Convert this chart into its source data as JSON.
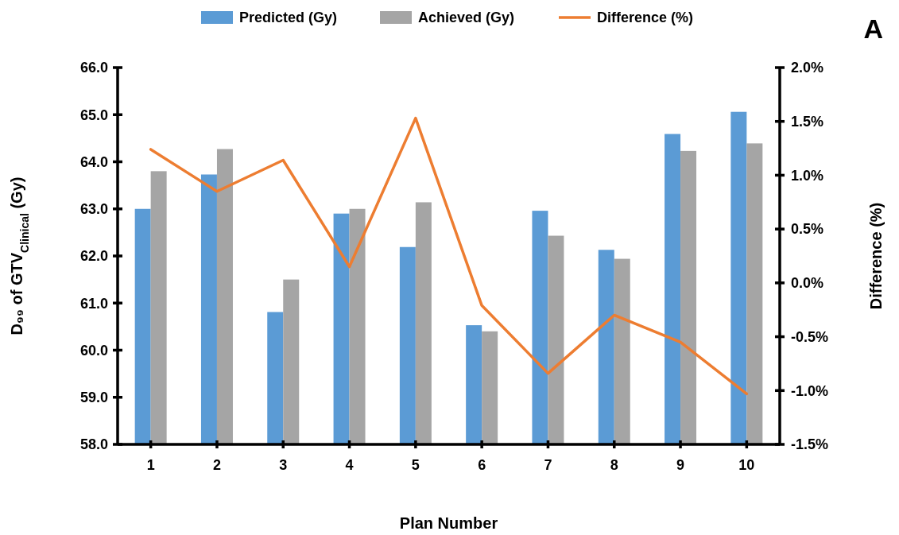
{
  "chart_data": {
    "type": "bar",
    "xlabel": "Plan Number",
    "ylabel": "D₉₉ of GTV$_{Clinical}$ (Gy)",
    "y2label": "Difference (%)",
    "annotations": [
      "A"
    ],
    "categories": [
      "1",
      "2",
      "3",
      "4",
      "5",
      "6",
      "7",
      "8",
      "9",
      "10"
    ],
    "series": [
      {
        "name": "Predicted (Gy)",
        "color": "#5b9bd5",
        "values": [
          63.0,
          63.73,
          60.81,
          62.9,
          62.19,
          60.53,
          62.96,
          62.13,
          64.59,
          65.06
        ]
      },
      {
        "name": "Achieved (Gy)",
        "color": "#a5a5a5",
        "values": [
          63.8,
          64.27,
          61.5,
          63.0,
          63.14,
          60.4,
          62.43,
          61.94,
          64.23,
          64.39
        ]
      },
      {
        "name": "Difference (%)",
        "type": "line",
        "axis": "y2",
        "color": "#ed7d31",
        "values": [
          1.24,
          0.85,
          1.14,
          0.15,
          1.53,
          -0.21,
          -0.84,
          -0.3,
          -0.55,
          -1.03
        ]
      }
    ],
    "ylim": [
      58,
      66
    ],
    "yticks": [
      {
        "value": 58,
        "label": "58.0"
      },
      {
        "value": 59,
        "label": "59.0"
      },
      {
        "value": 60,
        "label": "60.0"
      },
      {
        "value": 61,
        "label": "61.0"
      },
      {
        "value": 62,
        "label": "62.0"
      },
      {
        "value": 63,
        "label": "63.0"
      },
      {
        "value": 64,
        "label": "64.0"
      },
      {
        "value": 65,
        "label": "65.0"
      },
      {
        "value": 66,
        "label": "66.0"
      }
    ],
    "y2lim": [
      -1.5,
      2
    ],
    "y2ticks": [
      {
        "value": -1.5,
        "label": "-1.5%"
      },
      {
        "value": -1,
        "label": "-1.0%"
      },
      {
        "value": -0.5,
        "label": "-0.5%"
      },
      {
        "value": 0,
        "label": "0.0%"
      },
      {
        "value": 0.5,
        "label": "0.5%"
      },
      {
        "value": 1,
        "label": "1.0%"
      },
      {
        "value": 1.5,
        "label": "1.5%"
      },
      {
        "value": 2,
        "label": "2.0%"
      }
    ],
    "grid": false,
    "legend": "top",
    "marker": "none",
    "line_style": "solid"
  }
}
